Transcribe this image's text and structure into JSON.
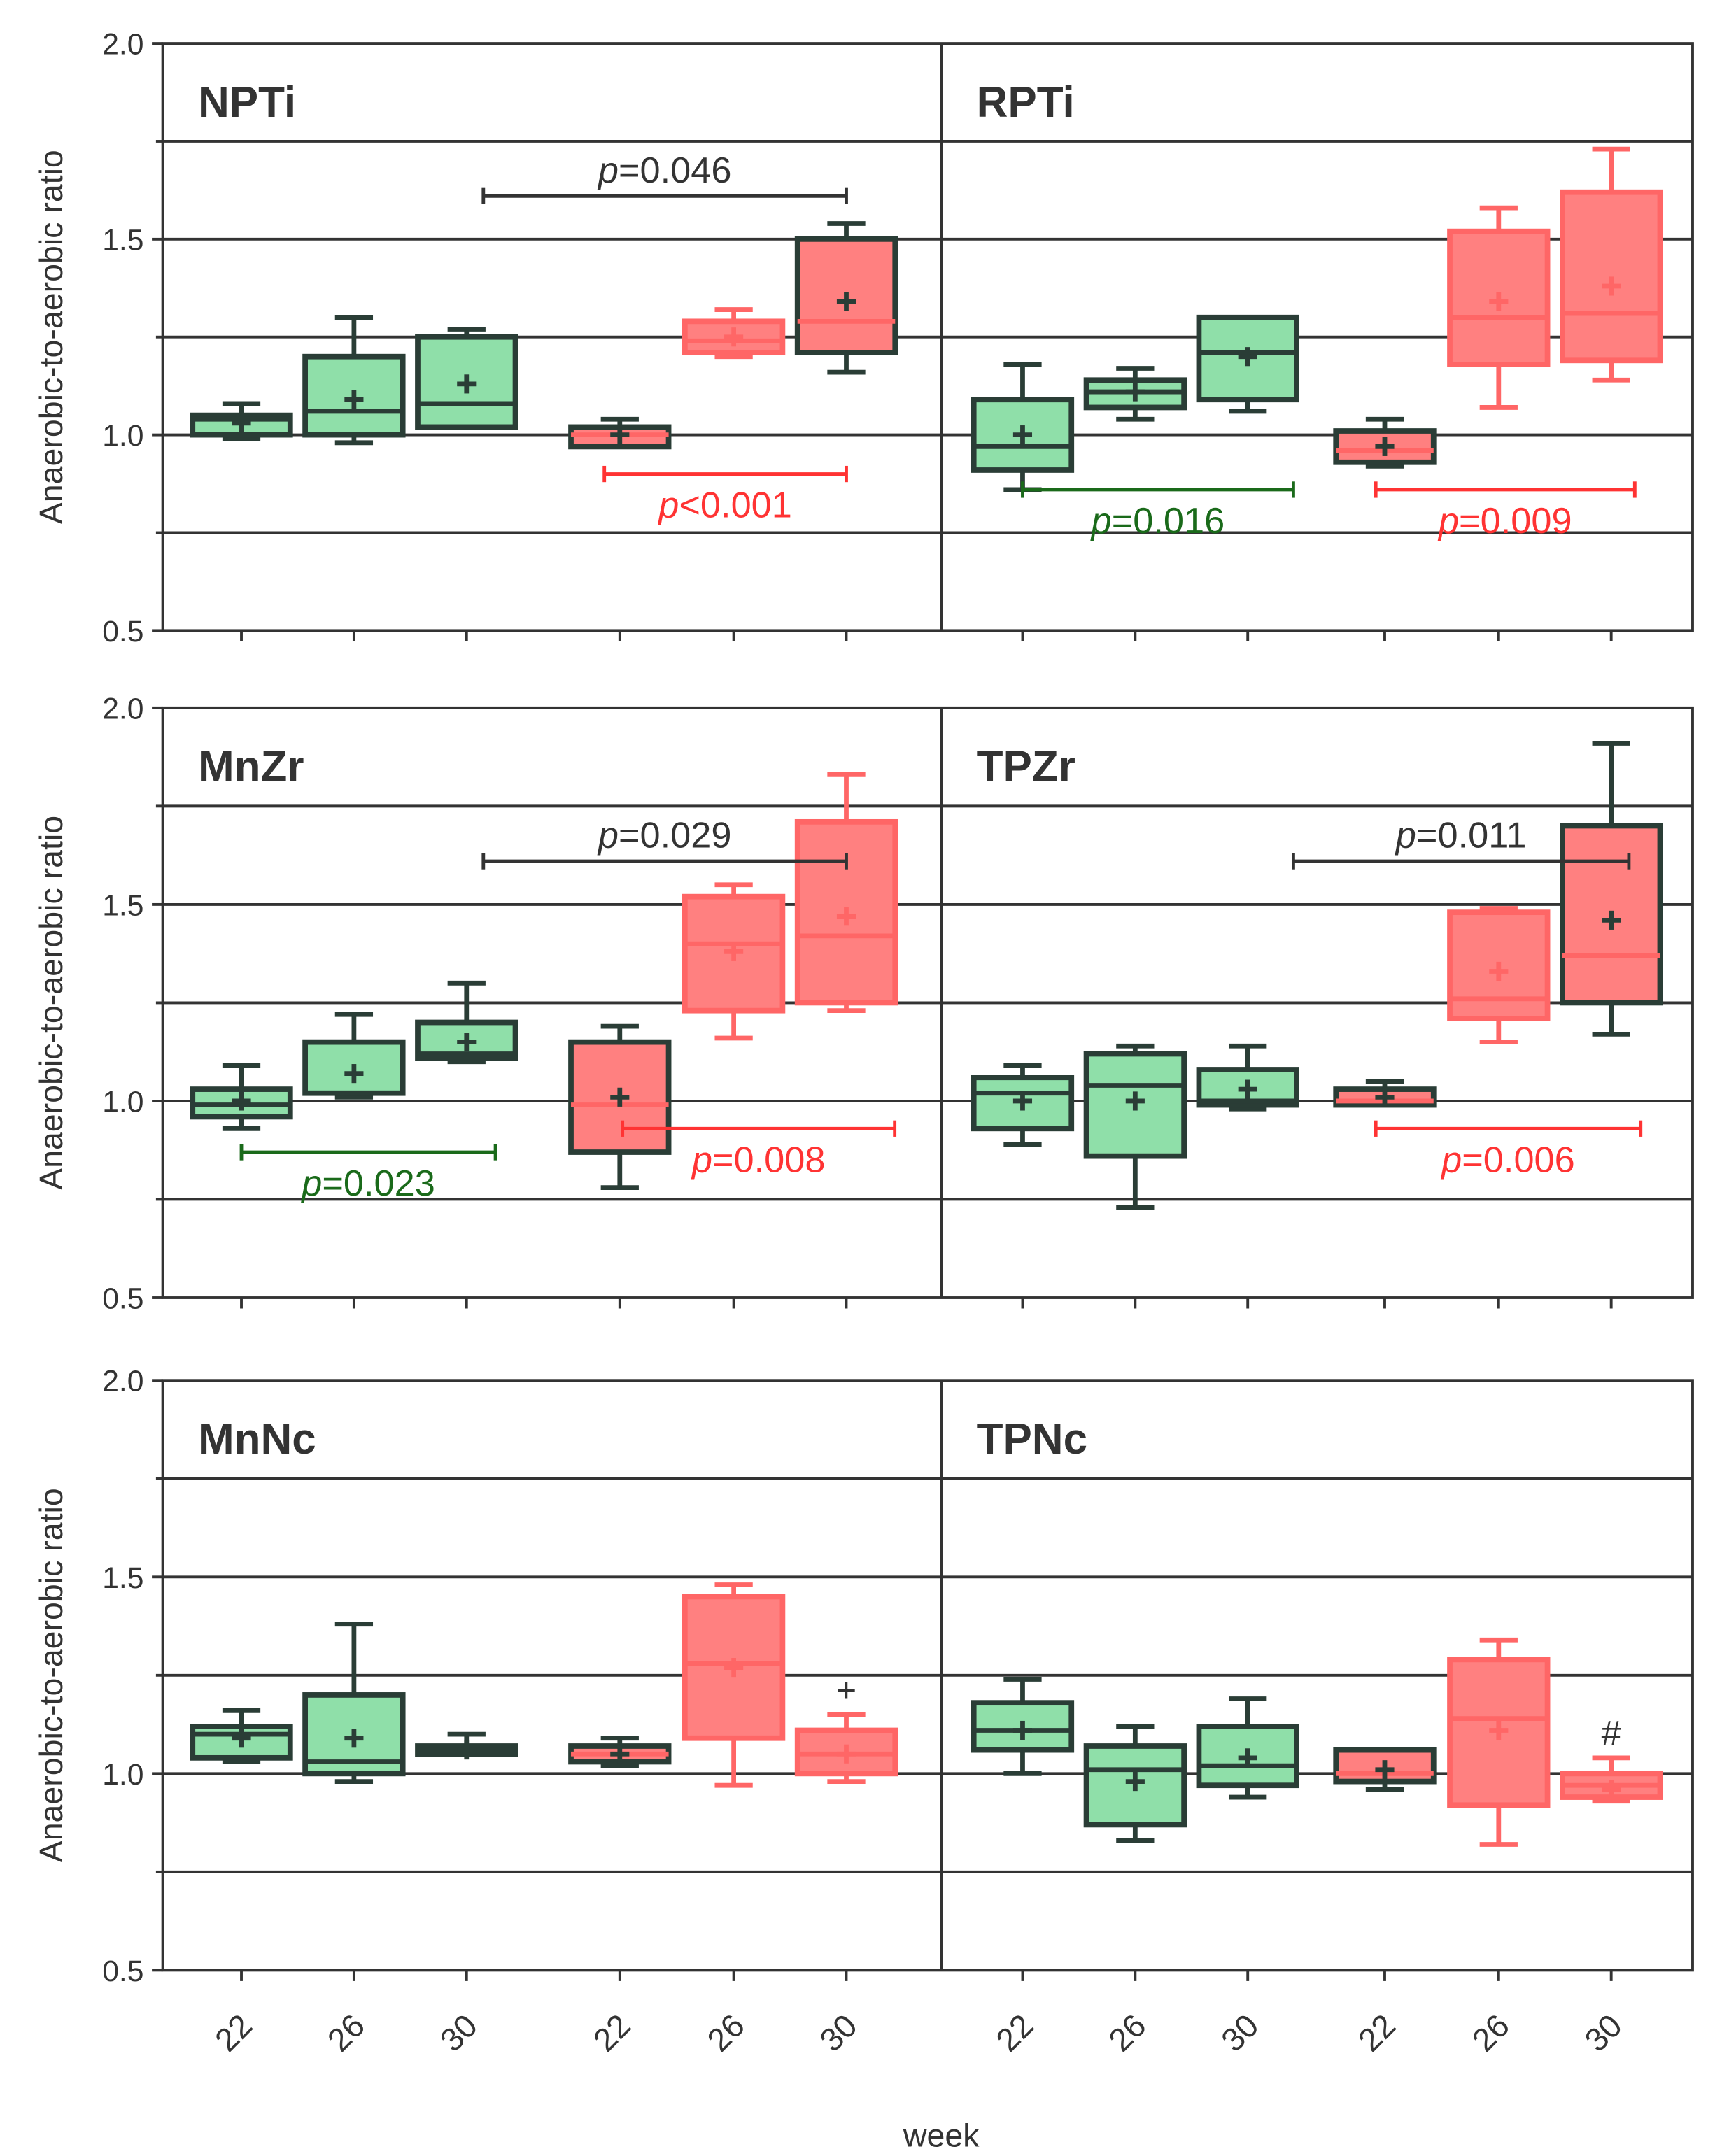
{
  "colors": {
    "axis": "#333333",
    "green_fill": "#8fdfa9",
    "green_stroke": "#2a3d36",
    "red_fill": "#ff8080",
    "red_stroke_light": "#ff6666",
    "red_stroke_dark": "#ff0000",
    "dark_green_text": "#1a6a1a",
    "red_text": "#ff3333",
    "black_text": "#333333"
  },
  "y_axis_label": "Anaerobic-to-aerobic ratio",
  "x_axis_label": "week",
  "chart_data": [
    {
      "type": "box",
      "row": 1,
      "ylim": [
        0.5,
        2.0
      ],
      "yticks": [
        "0.5",
        "1.0",
        "1.5",
        "2.0"
      ],
      "gridlines": [
        0.75,
        1.0,
        1.25,
        1.5,
        1.75
      ],
      "panels": [
        {
          "title": "NPTi",
          "boxes": [
            {
              "week": "22",
              "group": "green",
              "min": 0.99,
              "q1": 1.0,
              "median": 1.04,
              "q3": 1.05,
              "max": 1.08,
              "mean": 1.03
            },
            {
              "week": "26",
              "group": "green",
              "min": 0.98,
              "q1": 1.0,
              "median": 1.06,
              "q3": 1.2,
              "max": 1.3,
              "mean": 1.09
            },
            {
              "week": "30",
              "group": "green",
              "min": 1.02,
              "q1": 1.02,
              "median": 1.08,
              "q3": 1.25,
              "max": 1.27,
              "mean": 1.13
            },
            {
              "week": "22",
              "group": "red-dark",
              "min": 0.97,
              "q1": 0.97,
              "median": 1.0,
              "q3": 1.02,
              "max": 1.04,
              "mean": 1.0
            },
            {
              "week": "26",
              "group": "red-light",
              "min": 1.2,
              "q1": 1.21,
              "median": 1.24,
              "q3": 1.29,
              "max": 1.32,
              "mean": 1.25
            },
            {
              "week": "30",
              "group": "red-dark",
              "min": 1.16,
              "q1": 1.21,
              "median": 1.29,
              "q3": 1.5,
              "max": 1.54,
              "mean": 1.34
            }
          ],
          "annotations": [
            {
              "text_p": "p",
              "text_rest": "=0.046",
              "style": "black",
              "from": 2,
              "to": 5,
              "y": 1.61,
              "label_pos": "above"
            },
            {
              "text_p": "p",
              "text_rest": "<0.001",
              "style": "red",
              "from": 3,
              "to": 5,
              "y": 0.9,
              "label_pos": "below"
            }
          ]
        },
        {
          "title": "RPTi",
          "boxes": [
            {
              "week": "22",
              "group": "green",
              "min": 0.86,
              "q1": 0.91,
              "median": 0.97,
              "q3": 1.09,
              "max": 1.18,
              "mean": 1.0
            },
            {
              "week": "26",
              "group": "green",
              "min": 1.04,
              "q1": 1.07,
              "median": 1.11,
              "q3": 1.14,
              "max": 1.17,
              "mean": 1.11
            },
            {
              "week": "30",
              "group": "green",
              "min": 1.06,
              "q1": 1.09,
              "median": 1.21,
              "q3": 1.3,
              "max": 1.3,
              "mean": 1.2
            },
            {
              "week": "22",
              "group": "red-dark",
              "min": 0.92,
              "q1": 0.93,
              "median": 0.96,
              "q3": 1.01,
              "max": 1.04,
              "mean": 0.97
            },
            {
              "week": "26",
              "group": "red-light",
              "min": 1.07,
              "q1": 1.18,
              "median": 1.3,
              "q3": 1.52,
              "max": 1.58,
              "mean": 1.34
            },
            {
              "week": "30",
              "group": "red-light",
              "min": 1.14,
              "q1": 1.19,
              "median": 1.31,
              "q3": 1.62,
              "max": 1.73,
              "mean": 1.38
            }
          ],
          "annotations": [
            {
              "text_p": "p",
              "text_rest": "=0.016",
              "style": "darkgreen",
              "from": 0,
              "to": 2.3,
              "y": 0.86,
              "label_pos": "below"
            },
            {
              "text_p": "p",
              "text_rest": "=0.009",
              "style": "red",
              "from": 3,
              "to": 5.2,
              "y": 0.86,
              "label_pos": "below"
            }
          ]
        }
      ]
    },
    {
      "type": "box",
      "row": 2,
      "ylim": [
        0.5,
        2.0
      ],
      "yticks": [
        "0.5",
        "1.0",
        "1.5",
        "2.0"
      ],
      "gridlines": [
        0.75,
        1.0,
        1.25,
        1.5,
        1.75
      ],
      "panels": [
        {
          "title": "MnZr",
          "boxes": [
            {
              "week": "22",
              "group": "green",
              "min": 0.93,
              "q1": 0.96,
              "median": 0.99,
              "q3": 1.03,
              "max": 1.09,
              "mean": 1.0
            },
            {
              "week": "26",
              "group": "green",
              "min": 1.01,
              "q1": 1.02,
              "median": 1.02,
              "q3": 1.15,
              "max": 1.22,
              "mean": 1.07
            },
            {
              "week": "30",
              "group": "green",
              "min": 1.1,
              "q1": 1.11,
              "median": 1.12,
              "q3": 1.2,
              "max": 1.3,
              "mean": 1.15
            },
            {
              "week": "22",
              "group": "red-dark",
              "min": 0.78,
              "q1": 0.87,
              "median": 0.99,
              "q3": 1.15,
              "max": 1.19,
              "mean": 1.01
            },
            {
              "week": "26",
              "group": "red-light",
              "min": 1.16,
              "q1": 1.23,
              "median": 1.4,
              "q3": 1.52,
              "max": 1.55,
              "mean": 1.38
            },
            {
              "week": "30",
              "group": "red-light",
              "min": 1.23,
              "q1": 1.25,
              "median": 1.42,
              "q3": 1.71,
              "max": 1.83,
              "mean": 1.47
            }
          ],
          "annotations": [
            {
              "text_p": "p",
              "text_rest": "=0.029",
              "style": "black",
              "from": 2,
              "to": 5,
              "y": 1.61,
              "label_pos": "above"
            },
            {
              "text_p": "p",
              "text_rest": "=0.023",
              "style": "darkgreen",
              "from": 0,
              "to": 2.1,
              "y": 0.87,
              "label_pos": "below"
            },
            {
              "text_p": "p",
              "text_rest": "=0.008",
              "style": "red",
              "from": 3.15,
              "to": 5.4,
              "y": 0.93,
              "label_pos": "below"
            }
          ]
        },
        {
          "title": "TPZr",
          "boxes": [
            {
              "week": "22",
              "group": "green",
              "min": 0.89,
              "q1": 0.93,
              "median": 1.02,
              "q3": 1.06,
              "max": 1.09,
              "mean": 1.0
            },
            {
              "week": "26",
              "group": "green",
              "min": 0.73,
              "q1": 0.86,
              "median": 1.04,
              "q3": 1.12,
              "max": 1.14,
              "mean": 1.0
            },
            {
              "week": "30",
              "group": "green",
              "min": 0.98,
              "q1": 0.99,
              "median": 1.0,
              "q3": 1.08,
              "max": 1.14,
              "mean": 1.03
            },
            {
              "week": "22",
              "group": "red-dark",
              "min": 0.99,
              "q1": 0.99,
              "median": 1.0,
              "q3": 1.03,
              "max": 1.05,
              "mean": 1.01
            },
            {
              "week": "26",
              "group": "red-light",
              "min": 1.15,
              "q1": 1.21,
              "median": 1.26,
              "q3": 1.48,
              "max": 1.49,
              "mean": 1.33
            },
            {
              "week": "30",
              "group": "red-dark",
              "min": 1.17,
              "q1": 1.25,
              "median": 1.37,
              "q3": 1.7,
              "max": 1.91,
              "mean": 1.46
            }
          ],
          "annotations": [
            {
              "text_p": "p",
              "text_rest": "=0.011",
              "style": "black",
              "from": 2.3,
              "to": 5.15,
              "y": 1.61,
              "label_pos": "above"
            },
            {
              "text_p": "p",
              "text_rest": "=0.006",
              "style": "red",
              "from": 3,
              "to": 5.25,
              "y": 0.93,
              "label_pos": "below"
            }
          ]
        }
      ]
    },
    {
      "type": "box",
      "row": 3,
      "ylim": [
        0.5,
        2.0
      ],
      "yticks": [
        "0.5",
        "1.0",
        "1.5",
        "2.0"
      ],
      "gridlines": [
        0.75,
        1.0,
        1.25,
        1.5,
        1.75
      ],
      "xticks": [
        "22",
        "26",
        "30",
        "22",
        "26",
        "30"
      ],
      "panels": [
        {
          "title": "MnNc",
          "boxes": [
            {
              "week": "22",
              "group": "green",
              "min": 1.03,
              "q1": 1.04,
              "median": 1.1,
              "q3": 1.12,
              "max": 1.16,
              "mean": 1.09
            },
            {
              "week": "26",
              "group": "green",
              "min": 0.98,
              "q1": 1.0,
              "median": 1.03,
              "q3": 1.2,
              "max": 1.38,
              "mean": 1.09
            },
            {
              "week": "30",
              "group": "green",
              "min": 1.05,
              "q1": 1.05,
              "median": 1.06,
              "q3": 1.07,
              "max": 1.1,
              "mean": 1.06
            },
            {
              "week": "22",
              "group": "red-dark",
              "min": 1.02,
              "q1": 1.03,
              "median": 1.05,
              "q3": 1.07,
              "max": 1.09,
              "mean": 1.05
            },
            {
              "week": "26",
              "group": "red-light",
              "min": 0.97,
              "q1": 1.09,
              "median": 1.28,
              "q3": 1.45,
              "max": 1.48,
              "mean": 1.27
            },
            {
              "week": "30",
              "group": "red-light",
              "min": 0.98,
              "q1": 1.0,
              "median": 1.05,
              "q3": 1.11,
              "max": 1.15,
              "mean": 1.05
            }
          ],
          "markers": [
            {
              "index": 5,
              "symbol": "+",
              "y": 1.21
            }
          ]
        },
        {
          "title": "TPNc",
          "boxes": [
            {
              "week": "22",
              "group": "green",
              "min": 1.0,
              "q1": 1.06,
              "median": 1.11,
              "q3": 1.18,
              "max": 1.24,
              "mean": 1.11
            },
            {
              "week": "26",
              "group": "green",
              "min": 0.83,
              "q1": 0.87,
              "median": 1.01,
              "q3": 1.07,
              "max": 1.12,
              "mean": 0.98
            },
            {
              "week": "30",
              "group": "green",
              "min": 0.94,
              "q1": 0.97,
              "median": 1.02,
              "q3": 1.12,
              "max": 1.19,
              "mean": 1.04
            },
            {
              "week": "22",
              "group": "red-dark",
              "min": 0.96,
              "q1": 0.98,
              "median": 1.0,
              "q3": 1.06,
              "max": 1.06,
              "mean": 1.01
            },
            {
              "week": "26",
              "group": "red-light",
              "min": 0.82,
              "q1": 0.92,
              "median": 1.14,
              "q3": 1.29,
              "max": 1.34,
              "mean": 1.11
            },
            {
              "week": "30",
              "group": "red-light",
              "min": 0.93,
              "q1": 0.94,
              "median": 0.97,
              "q3": 1.0,
              "max": 1.04,
              "mean": 0.96
            }
          ],
          "markers": [
            {
              "index": 5,
              "symbol": "#",
              "y": 1.1
            }
          ]
        }
      ]
    }
  ]
}
